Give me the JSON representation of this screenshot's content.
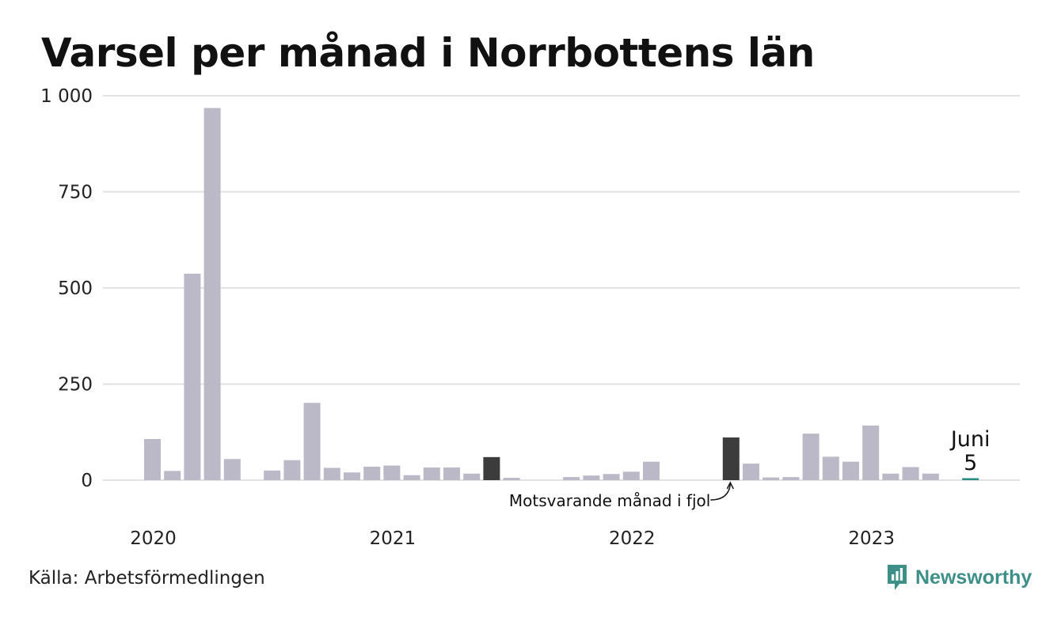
{
  "title": "Varsel per månad i Norrbottens län",
  "source": "Källa: Arbetsförmedlingen",
  "brand": {
    "name": "Newsworthy",
    "icon": "newsworthy-logo-icon",
    "color": "#3f8f89"
  },
  "chart_data": {
    "type": "bar",
    "title": "Varsel per månad i Norrbottens län",
    "ylim": [
      0,
      1000
    ],
    "y_ticks": [
      {
        "value": 0,
        "label": "0"
      },
      {
        "value": 250,
        "label": "250"
      },
      {
        "value": 500,
        "label": "500"
      },
      {
        "value": 750,
        "label": "750"
      },
      {
        "value": 1000,
        "label": "1 000"
      }
    ],
    "x_year_labels": [
      {
        "label": "2020",
        "month_index": 0
      },
      {
        "label": "2021",
        "month_index": 12
      },
      {
        "label": "2022",
        "month_index": 24
      },
      {
        "label": "2023",
        "month_index": 36
      }
    ],
    "grid": true,
    "colors": {
      "default": "#bbb8c8",
      "highlight": "#3c3c3c",
      "latest": "#2a8a84",
      "grid": "#e2e2e2"
    },
    "months": [
      {
        "period": "2020-01",
        "value": 107
      },
      {
        "period": "2020-02",
        "value": 24
      },
      {
        "period": "2020-03",
        "value": 537
      },
      {
        "period": "2020-04",
        "value": 968
      },
      {
        "period": "2020-05",
        "value": 55
      },
      {
        "period": "2020-06",
        "value": 0
      },
      {
        "period": "2020-07",
        "value": 25
      },
      {
        "period": "2020-08",
        "value": 52
      },
      {
        "period": "2020-09",
        "value": 201
      },
      {
        "period": "2020-10",
        "value": 32
      },
      {
        "period": "2020-11",
        "value": 20
      },
      {
        "period": "2020-12",
        "value": 35
      },
      {
        "period": "2021-01",
        "value": 38
      },
      {
        "period": "2021-02",
        "value": 13
      },
      {
        "period": "2021-03",
        "value": 33
      },
      {
        "period": "2021-04",
        "value": 33
      },
      {
        "period": "2021-05",
        "value": 17
      },
      {
        "period": "2021-06",
        "value": 60,
        "highlight": true
      },
      {
        "period": "2021-07",
        "value": 6
      },
      {
        "period": "2021-08",
        "value": 0
      },
      {
        "period": "2021-09",
        "value": 0
      },
      {
        "period": "2021-10",
        "value": 8
      },
      {
        "period": "2021-11",
        "value": 12
      },
      {
        "period": "2021-12",
        "value": 16
      },
      {
        "period": "2022-01",
        "value": 22
      },
      {
        "period": "2022-02",
        "value": 48
      },
      {
        "period": "2022-03",
        "value": 0
      },
      {
        "period": "2022-04",
        "value": 0
      },
      {
        "period": "2022-05",
        "value": 0
      },
      {
        "period": "2022-06",
        "value": 111,
        "highlight": true
      },
      {
        "period": "2022-07",
        "value": 43
      },
      {
        "period": "2022-08",
        "value": 7
      },
      {
        "period": "2022-09",
        "value": 8
      },
      {
        "period": "2022-10",
        "value": 121
      },
      {
        "period": "2022-11",
        "value": 61
      },
      {
        "period": "2022-12",
        "value": 48
      },
      {
        "period": "2023-01",
        "value": 142
      },
      {
        "period": "2023-02",
        "value": 17
      },
      {
        "period": "2023-03",
        "value": 34
      },
      {
        "period": "2023-04",
        "value": 17
      },
      {
        "period": "2023-05",
        "value": 0
      },
      {
        "period": "2023-06",
        "value": 5,
        "latest": true
      }
    ],
    "annotations": [
      {
        "text": "Motsvarande månad i fjol",
        "month_index": 29
      }
    ],
    "latest_label": {
      "month": "Juni",
      "value": "5",
      "month_index": 41
    }
  }
}
